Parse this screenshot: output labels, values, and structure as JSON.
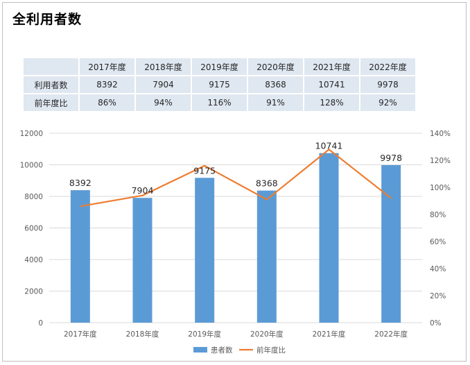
{
  "title": "全利用者数",
  "table": {
    "columns": [
      "2017年度",
      "2018年度",
      "2019年度",
      "2020年度",
      "2021年度",
      "2022年度"
    ],
    "rows": [
      {
        "label": "利用者数",
        "cells": [
          "8392",
          "7904",
          "9175",
          "8368",
          "10741",
          "9978"
        ]
      },
      {
        "label": "前年度比",
        "cells": [
          "86%",
          "94%",
          "116%",
          "91%",
          "128%",
          "92%"
        ]
      }
    ]
  },
  "chart_data": {
    "type": "bar",
    "categories": [
      "2017年度",
      "2018年度",
      "2019年度",
      "2020年度",
      "2021年度",
      "2022年度"
    ],
    "series": [
      {
        "name": "患者数",
        "type": "bar",
        "axis": "left",
        "color": "#5b9bd5",
        "values": [
          8392,
          7904,
          9175,
          8368,
          10741,
          9978
        ]
      },
      {
        "name": "前年度比",
        "type": "line",
        "axis": "right",
        "color": "#ed7d31",
        "values": [
          86,
          94,
          116,
          91,
          128,
          92
        ]
      }
    ],
    "left_axis": {
      "ylim": [
        0,
        12000
      ],
      "ticks": [
        "0",
        "2000",
        "4000",
        "6000",
        "8000",
        "10000",
        "12000"
      ]
    },
    "right_axis": {
      "ylim": [
        0,
        140
      ],
      "ticks": [
        "0%",
        "20%",
        "40%",
        "60%",
        "80%",
        "100%",
        "120%",
        "140%"
      ]
    },
    "data_labels": [
      "8392",
      "7904",
      "9175",
      "8368",
      "10741",
      "9978"
    ],
    "grid": true,
    "legend": "bottom"
  }
}
